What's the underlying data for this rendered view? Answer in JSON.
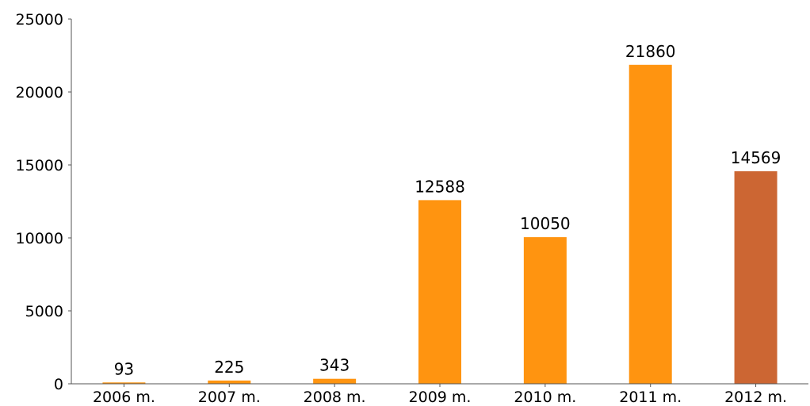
{
  "chart_data": {
    "type": "bar",
    "categories": [
      "2006 m.",
      "2007 m.",
      "2008 m.",
      "2009 m.",
      "2010 m.",
      "2011 m.",
      "2012 m."
    ],
    "values": [
      93,
      225,
      343,
      12588,
      10050,
      21860,
      14569
    ],
    "data_labels": [
      "93",
      "225",
      "343",
      "12588",
      "10050",
      "21860",
      "14569"
    ],
    "bar_colors": [
      "#ff9410",
      "#ff9410",
      "#ff9410",
      "#ff9410",
      "#ff9410",
      "#ff9410",
      "#cc6633"
    ],
    "yticks": [
      0,
      5000,
      10000,
      15000,
      20000,
      25000
    ],
    "ylim": [
      0,
      25000
    ],
    "title": "",
    "xlabel": "",
    "ylabel": "",
    "grid": false,
    "legend": "none"
  }
}
